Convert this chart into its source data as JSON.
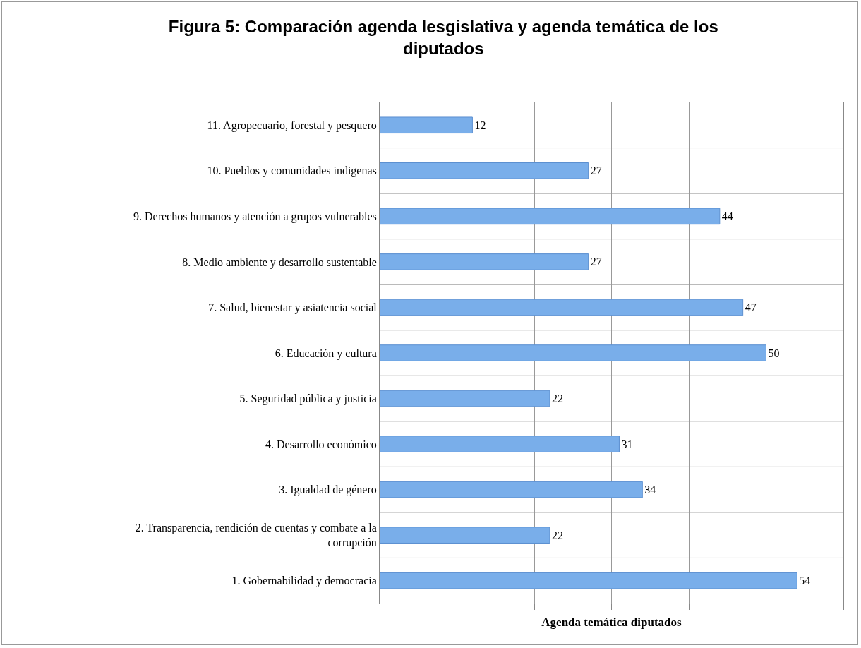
{
  "chart_data": {
    "type": "bar",
    "orientation": "horizontal",
    "title": "Figura 5: Comparación agenda lesgislativa y agenda temática de los diputados",
    "xlabel": "Agenda temática diputados",
    "categories": [
      "11. Agropecuario, forestal y pesquero",
      "10. Pueblos y comunidades indigenas",
      "9. Derechos humanos y atención a grupos vulnerables",
      "8. Medio ambiente y desarrollo sustentable",
      "7. Salud, bienestar y asiatencia social",
      "6. Educación y cultura",
      "5. Seguridad pública y justicia",
      "4. Desarrollo económico",
      "3. Igualdad de género",
      "2. Transparencia, rendición de cuentas y combate a la corrupción",
      "1. Gobernabilidad y democracia"
    ],
    "values": [
      12,
      27,
      44,
      27,
      47,
      50,
      22,
      31,
      34,
      22,
      54
    ],
    "color": "#79aeea",
    "data_labels": true,
    "xlim": [
      0,
      60
    ],
    "xticks": [
      {
        "value": 0,
        "label": null
      },
      {
        "value": 10,
        "label": null
      },
      {
        "value": 20,
        "label": null
      },
      {
        "value": 30,
        "label": null
      },
      {
        "value": 40,
        "label": null
      },
      {
        "value": 50,
        "label": null
      },
      {
        "value": 60,
        "label": null
      }
    ],
    "tick_labels": "y",
    "grid": true,
    "legend": false
  }
}
